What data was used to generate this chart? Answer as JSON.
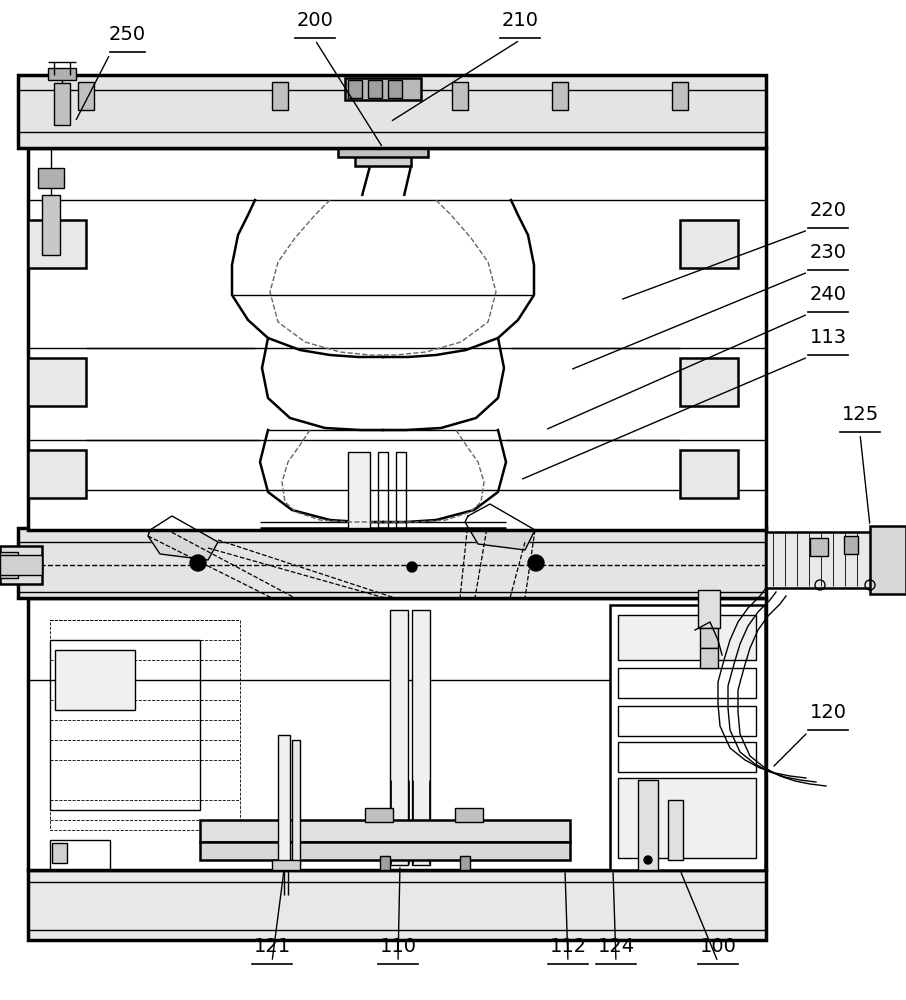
{
  "bg_color": "#ffffff",
  "line_color": "#000000",
  "label_fontsize": 14,
  "lw_thick": 2.5,
  "lw_med": 1.8,
  "lw_thin": 1.0,
  "lw_hair": 0.6
}
